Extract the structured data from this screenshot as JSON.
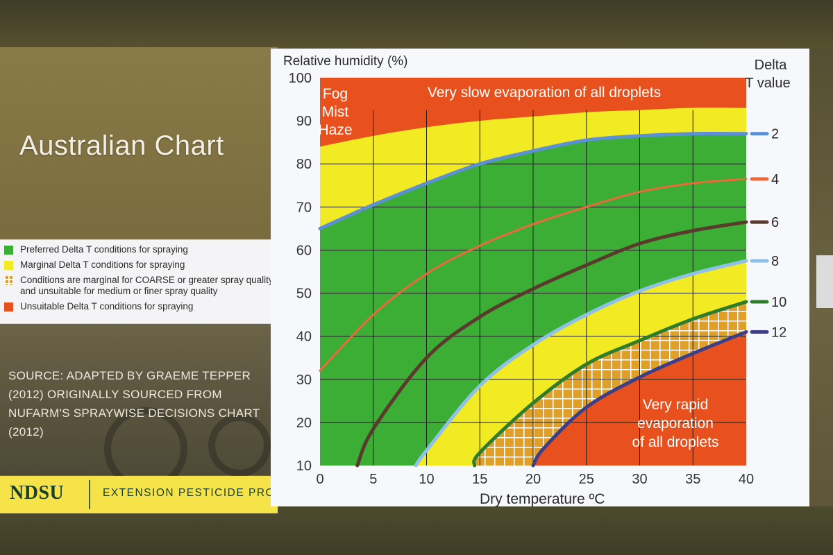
{
  "slide": {
    "title": "Australian Chart",
    "source": "SOURCE: ADAPTED BY GRAEME TEPPER (2012) ORIGINALLY SOURCED FROM NUFARM'S SPRAYWISE DECISIONS CHART (2012)",
    "footer_logo": "NDSU",
    "footer_program": "EXTENSION PESTICIDE PROGRAM"
  },
  "legend": [
    {
      "swatch": "green",
      "text": "Preferred Delta T conditions for spraying"
    },
    {
      "swatch": "yellow",
      "text": "Marginal Delta T conditions for spraying"
    },
    {
      "swatch": "check",
      "text": "Conditions are marginal for COARSE or greater spray quality",
      "text2": "and unsuitable for medium or finer spray quality"
    },
    {
      "swatch": "orange",
      "text": "Unsuitable Delta T conditions for spraying"
    }
  ],
  "colors": {
    "preferred": "#3cae36",
    "marginal": "#f2ea22",
    "unsuitable": "#e8501e",
    "checker": "#e0a028"
  },
  "chart_data": {
    "type": "line",
    "title": "",
    "ylabel": "Relative humidity (%)",
    "xlabel": "Dry temperature ºC",
    "xlim": [
      0,
      40
    ],
    "ylim": [
      10,
      100
    ],
    "x_ticks": [
      0,
      5,
      10,
      15,
      20,
      25,
      30,
      35,
      40
    ],
    "y_ticks": [
      10,
      20,
      30,
      40,
      50,
      60,
      70,
      80,
      90,
      100
    ],
    "grid": true,
    "legend_title_line1": "Delta",
    "legend_title_line2": "T value",
    "legend_position": "right",
    "region_labels": {
      "fog": [
        "Fog",
        "Mist",
        "Haze"
      ],
      "slow": "Very slow evaporation of all droplets",
      "rapid": [
        "Very rapid",
        "evaporation",
        "of all droplets"
      ]
    },
    "fog_boundary": {
      "x": [
        0,
        5,
        10,
        15,
        20,
        25,
        30,
        35,
        40
      ],
      "y": [
        84,
        86.5,
        88.5,
        90,
        91,
        92,
        92.5,
        93,
        93
      ]
    },
    "series": [
      {
        "name": "2",
        "color": "#5b8fd6",
        "width": 5,
        "x": [
          0,
          5,
          10,
          15,
          20,
          25,
          30,
          35,
          40
        ],
        "y": [
          65,
          70.5,
          75.5,
          80,
          83,
          85.5,
          86.5,
          87,
          87
        ]
      },
      {
        "name": "4",
        "color": "#ea6a3a",
        "width": 3,
        "x": [
          0,
          5,
          10,
          15,
          20,
          25,
          30,
          35,
          40
        ],
        "y": [
          32,
          45,
          54.5,
          61,
          66,
          70,
          73.5,
          75.5,
          76.5
        ]
      },
      {
        "name": "6",
        "color": "#5a3a2c",
        "width": 5,
        "x": [
          3.5,
          5,
          10,
          15,
          20,
          25,
          30,
          35,
          40
        ],
        "y": [
          10,
          18.5,
          35,
          44.5,
          51,
          56.5,
          61.5,
          64.5,
          66.5
        ]
      },
      {
        "name": "8",
        "color": "#8ec1ea",
        "width": 5,
        "x": [
          9,
          10,
          15,
          20,
          25,
          30,
          35,
          40
        ],
        "y": [
          10,
          13.5,
          28.5,
          38,
          45,
          50.5,
          54.5,
          57.5
        ]
      },
      {
        "name": "10",
        "color": "#2f7d2a",
        "width": 5,
        "x": [
          14.5,
          15,
          20,
          25,
          30,
          35,
          40
        ],
        "y": [
          10,
          13,
          24.5,
          33.5,
          39,
          44,
          48
        ]
      },
      {
        "name": "12",
        "color": "#3d3f86",
        "width": 5,
        "x": [
          20,
          21,
          25,
          30,
          35,
          40
        ],
        "y": [
          10,
          14,
          23.5,
          30.5,
          36,
          41
        ]
      }
    ]
  }
}
